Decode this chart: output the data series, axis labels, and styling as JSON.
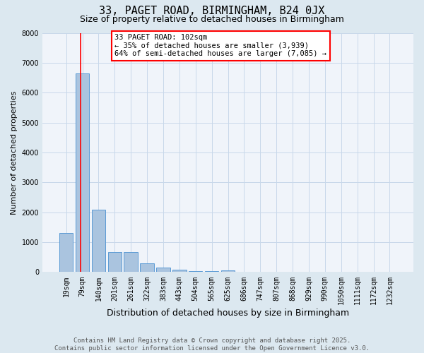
{
  "title": "33, PAGET ROAD, BIRMINGHAM, B24 0JX",
  "subtitle": "Size of property relative to detached houses in Birmingham",
  "xlabel": "Distribution of detached houses by size in Birmingham",
  "ylabel": "Number of detached properties",
  "categories": [
    "19sqm",
    "79sqm",
    "140sqm",
    "201sqm",
    "261sqm",
    "322sqm",
    "383sqm",
    "443sqm",
    "504sqm",
    "565sqm",
    "625sqm",
    "686sqm",
    "747sqm",
    "807sqm",
    "868sqm",
    "929sqm",
    "990sqm",
    "1050sqm",
    "1111sqm",
    "1172sqm",
    "1232sqm"
  ],
  "values": [
    1310,
    6650,
    2090,
    660,
    660,
    300,
    150,
    90,
    45,
    25,
    55,
    0,
    0,
    0,
    0,
    0,
    0,
    0,
    0,
    0,
    0
  ],
  "bar_color": "#aac4df",
  "bar_edge_color": "#5b9bd5",
  "vline_color": "red",
  "vline_x_index": 1,
  "annotation_text": "33 PAGET ROAD: 102sqm\n← 35% of detached houses are smaller (3,939)\n64% of semi-detached houses are larger (7,085) →",
  "ylim": [
    0,
    8000
  ],
  "yticks": [
    0,
    1000,
    2000,
    3000,
    4000,
    5000,
    6000,
    7000,
    8000
  ],
  "grid_color": "#c8d8ea",
  "background_color": "#dce8f0",
  "plot_background": "#f0f4fa",
  "footer": "Contains HM Land Registry data © Crown copyright and database right 2025.\nContains public sector information licensed under the Open Government Licence v3.0.",
  "title_fontsize": 11,
  "subtitle_fontsize": 9,
  "xlabel_fontsize": 9,
  "ylabel_fontsize": 8,
  "tick_fontsize": 7,
  "footer_fontsize": 6.5,
  "annot_fontsize": 7.5
}
